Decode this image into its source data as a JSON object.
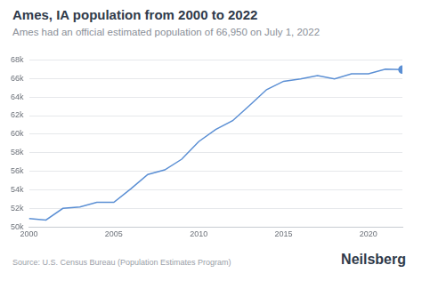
{
  "chart_data": {
    "type": "line",
    "title": "Ames, IA population from 2000 to 2022",
    "subtitle": "Ames had an official estimated population of 66,950 on July 1, 2022",
    "source": "Source: U.S. Census Bureau (Population Estimates Program)",
    "brand": "Neilsberg",
    "x": [
      2000,
      2001,
      2002,
      2003,
      2004,
      2005,
      2006,
      2007,
      2008,
      2009,
      2010,
      2011,
      2012,
      2013,
      2014,
      2015,
      2016,
      2017,
      2018,
      2019,
      2020,
      2021,
      2022
    ],
    "values": [
      50900,
      50750,
      52000,
      52150,
      52650,
      52650,
      54100,
      55650,
      56150,
      57300,
      59200,
      60500,
      61450,
      63100,
      64800,
      65700,
      65950,
      66300,
      65950,
      66500,
      66500,
      67000,
      66950
    ],
    "color": "#5b8fd4",
    "xlim": [
      2000,
      2022
    ],
    "xticks": [
      2000,
      2005,
      2010,
      2015,
      2020
    ],
    "ylim": [
      50000,
      68000
    ],
    "yticks": [
      {
        "value": 50000,
        "label": "50k"
      },
      {
        "value": 52000,
        "label": "52k"
      },
      {
        "value": 54000,
        "label": "54k"
      },
      {
        "value": 56000,
        "label": "56k"
      },
      {
        "value": 58000,
        "label": "58k"
      },
      {
        "value": 60000,
        "label": "60k"
      },
      {
        "value": 62000,
        "label": "62k"
      },
      {
        "value": 64000,
        "label": "64k"
      },
      {
        "value": 66000,
        "label": "66k"
      },
      {
        "value": 68000,
        "label": "68k"
      }
    ],
    "grid": "y"
  }
}
